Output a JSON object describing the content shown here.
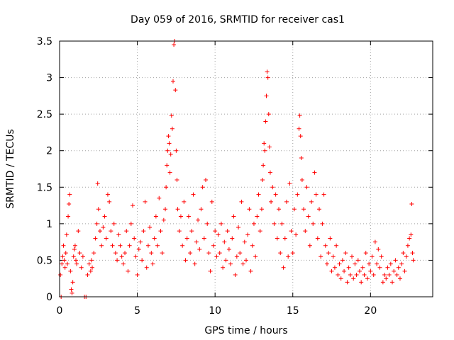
{
  "chart_data": {
    "type": "scatter",
    "title": "Day 059 of 2016, SRMTID for receiver cas1",
    "xlabel": "GPS time / hours",
    "ylabel": "SRMTID / TECUs",
    "xlim": [
      0,
      24
    ],
    "ylim": [
      0,
      3.5
    ],
    "x_ticks": [
      0,
      5,
      10,
      15,
      20
    ],
    "y_ticks": [
      0,
      0.5,
      1,
      1.5,
      2,
      2.5,
      3,
      3.5
    ],
    "x_tick_labels": [
      "0",
      "5",
      "10",
      "15",
      "20"
    ],
    "y_tick_labels": [
      "0",
      "0.5",
      "1",
      "1.5",
      "2",
      "2.5",
      "3",
      "3.5"
    ],
    "grid": true,
    "marker": "+",
    "color": "#ff0000",
    "series": [
      {
        "name": "cas1",
        "points": [
          [
            0.05,
            0.3
          ],
          [
            0.1,
            0.0
          ],
          [
            0.15,
            0.45
          ],
          [
            0.2,
            0.55
          ],
          [
            0.25,
            0.7
          ],
          [
            0.3,
            0.5
          ],
          [
            0.35,
            0.4
          ],
          [
            0.4,
            0.6
          ],
          [
            0.45,
            0.85
          ],
          [
            0.5,
            0.45
          ],
          [
            0.55,
            1.1
          ],
          [
            0.6,
            1.27
          ],
          [
            0.65,
            1.4
          ],
          [
            0.7,
            0.35
          ],
          [
            0.75,
            0.1
          ],
          [
            0.8,
            0.05
          ],
          [
            0.85,
            0.2
          ],
          [
            0.9,
            0.55
          ],
          [
            0.95,
            0.65
          ],
          [
            1.0,
            0.7
          ],
          [
            1.05,
            0.5
          ],
          [
            1.1,
            0.45
          ],
          [
            1.2,
            0.9
          ],
          [
            1.3,
            0.6
          ],
          [
            1.4,
            0.4
          ],
          [
            1.5,
            0.55
          ],
          [
            1.6,
            0.0
          ],
          [
            1.7,
            0.0
          ],
          [
            1.8,
            0.3
          ],
          [
            1.9,
            0.45
          ],
          [
            2.0,
            0.35
          ],
          [
            2.05,
            0.5
          ],
          [
            2.1,
            0.4
          ],
          [
            2.2,
            0.6
          ],
          [
            2.3,
            0.8
          ],
          [
            2.4,
            1.0
          ],
          [
            2.45,
            1.55
          ],
          [
            2.5,
            1.2
          ],
          [
            2.6,
            0.9
          ],
          [
            2.7,
            0.7
          ],
          [
            2.8,
            0.95
          ],
          [
            2.9,
            1.1
          ],
          [
            3.0,
            0.8
          ],
          [
            3.1,
            1.4
          ],
          [
            3.2,
            1.3
          ],
          [
            3.3,
            0.9
          ],
          [
            3.4,
            0.7
          ],
          [
            3.5,
            1.0
          ],
          [
            3.6,
            0.6
          ],
          [
            3.7,
            0.5
          ],
          [
            3.8,
            0.85
          ],
          [
            3.9,
            0.7
          ],
          [
            4.0,
            0.55
          ],
          [
            4.1,
            0.45
          ],
          [
            4.2,
            0.6
          ],
          [
            4.3,
            0.9
          ],
          [
            4.4,
            0.35
          ],
          [
            4.5,
            0.7
          ],
          [
            4.6,
            1.0
          ],
          [
            4.7,
            1.25
          ],
          [
            4.8,
            0.8
          ],
          [
            4.9,
            0.55
          ],
          [
            5.0,
            0.3
          ],
          [
            5.1,
            0.65
          ],
          [
            5.2,
            0.75
          ],
          [
            5.3,
            0.5
          ],
          [
            5.4,
            0.9
          ],
          [
            5.5,
            1.3
          ],
          [
            5.6,
            0.4
          ],
          [
            5.7,
            0.7
          ],
          [
            5.8,
            0.95
          ],
          [
            5.9,
            0.6
          ],
          [
            6.0,
            0.45
          ],
          [
            6.1,
            0.8
          ],
          [
            6.2,
            1.1
          ],
          [
            6.3,
            0.7
          ],
          [
            6.4,
            1.35
          ],
          [
            6.5,
            0.9
          ],
          [
            6.6,
            0.6
          ],
          [
            6.7,
            1.05
          ],
          [
            6.8,
            1.2
          ],
          [
            6.85,
            1.5
          ],
          [
            6.9,
            1.8
          ],
          [
            6.95,
            2.0
          ],
          [
            7.0,
            2.2
          ],
          [
            7.05,
            2.1
          ],
          [
            7.1,
            1.7
          ],
          [
            7.15,
            1.95
          ],
          [
            7.2,
            2.48
          ],
          [
            7.25,
            2.3
          ],
          [
            7.3,
            2.95
          ],
          [
            7.35,
            3.45
          ],
          [
            7.4,
            3.5
          ],
          [
            7.45,
            2.83
          ],
          [
            7.5,
            2.0
          ],
          [
            7.55,
            1.6
          ],
          [
            7.6,
            1.2
          ],
          [
            7.7,
            0.9
          ],
          [
            7.8,
            1.1
          ],
          [
            7.9,
            0.7
          ],
          [
            8.0,
            1.3
          ],
          [
            8.1,
            0.5
          ],
          [
            8.2,
            0.8
          ],
          [
            8.3,
            1.1
          ],
          [
            8.4,
            0.6
          ],
          [
            8.5,
            0.9
          ],
          [
            8.6,
            1.4
          ],
          [
            8.7,
            0.45
          ],
          [
            8.8,
            0.75
          ],
          [
            8.9,
            1.05
          ],
          [
            9.0,
            0.65
          ],
          [
            9.1,
            1.2
          ],
          [
            9.2,
            1.5
          ],
          [
            9.3,
            0.8
          ],
          [
            9.4,
            1.6
          ],
          [
            9.5,
            1.0
          ],
          [
            9.6,
            0.6
          ],
          [
            9.7,
            0.35
          ],
          [
            9.8,
            1.3
          ],
          [
            9.9,
            0.7
          ],
          [
            10.0,
            0.9
          ],
          [
            10.1,
            0.55
          ],
          [
            10.2,
            0.85
          ],
          [
            10.3,
            0.6
          ],
          [
            10.4,
            1.0
          ],
          [
            10.5,
            0.4
          ],
          [
            10.6,
            0.75
          ],
          [
            10.7,
            0.5
          ],
          [
            10.8,
            0.9
          ],
          [
            10.9,
            0.65
          ],
          [
            11.0,
            0.45
          ],
          [
            11.1,
            0.8
          ],
          [
            11.2,
            1.1
          ],
          [
            11.3,
            0.3
          ],
          [
            11.4,
            0.55
          ],
          [
            11.5,
            0.95
          ],
          [
            11.6,
            0.6
          ],
          [
            11.7,
            1.3
          ],
          [
            11.8,
            0.45
          ],
          [
            11.9,
            0.75
          ],
          [
            12.0,
            0.5
          ],
          [
            12.1,
            0.85
          ],
          [
            12.2,
            1.2
          ],
          [
            12.3,
            0.35
          ],
          [
            12.4,
            0.7
          ],
          [
            12.5,
            1.0
          ],
          [
            12.6,
            0.55
          ],
          [
            12.7,
            1.1
          ],
          [
            12.8,
            1.4
          ],
          [
            12.9,
            0.9
          ],
          [
            13.0,
            1.2
          ],
          [
            13.05,
            1.6
          ],
          [
            13.1,
            1.8
          ],
          [
            13.15,
            2.1
          ],
          [
            13.2,
            2.0
          ],
          [
            13.25,
            2.4
          ],
          [
            13.3,
            2.75
          ],
          [
            13.35,
            3.08
          ],
          [
            13.4,
            3.0
          ],
          [
            13.45,
            2.5
          ],
          [
            13.5,
            2.05
          ],
          [
            13.55,
            1.7
          ],
          [
            13.6,
            1.3
          ],
          [
            13.7,
            1.5
          ],
          [
            13.8,
            1.0
          ],
          [
            13.9,
            1.4
          ],
          [
            14.0,
            0.8
          ],
          [
            14.1,
            1.2
          ],
          [
            14.2,
            0.6
          ],
          [
            14.3,
            1.0
          ],
          [
            14.4,
            0.4
          ],
          [
            14.5,
            0.8
          ],
          [
            14.6,
            1.3
          ],
          [
            14.7,
            0.55
          ],
          [
            14.8,
            1.55
          ],
          [
            14.9,
            0.9
          ],
          [
            15.0,
            0.6
          ],
          [
            15.1,
            1.2
          ],
          [
            15.2,
            0.85
          ],
          [
            15.3,
            1.4
          ],
          [
            15.4,
            2.3
          ],
          [
            15.45,
            2.48
          ],
          [
            15.5,
            2.2
          ],
          [
            15.55,
            1.9
          ],
          [
            15.6,
            1.6
          ],
          [
            15.7,
            1.2
          ],
          [
            15.8,
            0.9
          ],
          [
            15.9,
            1.5
          ],
          [
            16.0,
            1.1
          ],
          [
            16.1,
            0.7
          ],
          [
            16.2,
            1.3
          ],
          [
            16.3,
            1.0
          ],
          [
            16.4,
            1.7
          ],
          [
            16.5,
            1.4
          ],
          [
            16.6,
            0.8
          ],
          [
            16.7,
            1.2
          ],
          [
            16.8,
            0.55
          ],
          [
            16.9,
            1.0
          ],
          [
            17.0,
            1.4
          ],
          [
            17.1,
            0.7
          ],
          [
            17.2,
            0.45
          ],
          [
            17.3,
            0.6
          ],
          [
            17.4,
            0.8
          ],
          [
            17.5,
            0.35
          ],
          [
            17.6,
            0.55
          ],
          [
            17.7,
            0.4
          ],
          [
            17.8,
            0.7
          ],
          [
            17.9,
            0.3
          ],
          [
            18.0,
            0.45
          ],
          [
            18.1,
            0.25
          ],
          [
            18.2,
            0.5
          ],
          [
            18.3,
            0.35
          ],
          [
            18.4,
            0.6
          ],
          [
            18.5,
            0.2
          ],
          [
            18.6,
            0.4
          ],
          [
            18.7,
            0.3
          ],
          [
            18.8,
            0.55
          ],
          [
            18.9,
            0.25
          ],
          [
            19.0,
            0.45
          ],
          [
            19.1,
            0.3
          ],
          [
            19.2,
            0.5
          ],
          [
            19.3,
            0.35
          ],
          [
            19.4,
            0.2
          ],
          [
            19.5,
            0.4
          ],
          [
            19.6,
            0.3
          ],
          [
            19.7,
            0.6
          ],
          [
            19.8,
            0.25
          ],
          [
            19.9,
            0.45
          ],
          [
            20.0,
            0.35
          ],
          [
            20.1,
            0.55
          ],
          [
            20.2,
            0.3
          ],
          [
            20.3,
            0.75
          ],
          [
            20.4,
            0.45
          ],
          [
            20.5,
            0.65
          ],
          [
            20.6,
            0.4
          ],
          [
            20.7,
            0.55
          ],
          [
            20.8,
            0.2
          ],
          [
            20.9,
            0.3
          ],
          [
            21.0,
            0.25
          ],
          [
            21.1,
            0.4
          ],
          [
            21.2,
            0.3
          ],
          [
            21.3,
            0.45
          ],
          [
            21.4,
            0.2
          ],
          [
            21.5,
            0.35
          ],
          [
            21.6,
            0.5
          ],
          [
            21.7,
            0.3
          ],
          [
            21.8,
            0.4
          ],
          [
            21.9,
            0.25
          ],
          [
            22.0,
            0.45
          ],
          [
            22.1,
            0.6
          ],
          [
            22.2,
            0.35
          ],
          [
            22.3,
            0.55
          ],
          [
            22.4,
            0.7
          ],
          [
            22.5,
            0.8
          ],
          [
            22.6,
            0.85
          ],
          [
            22.65,
            1.27
          ],
          [
            22.7,
            0.6
          ],
          [
            22.75,
            0.5
          ]
        ]
      }
    ]
  }
}
